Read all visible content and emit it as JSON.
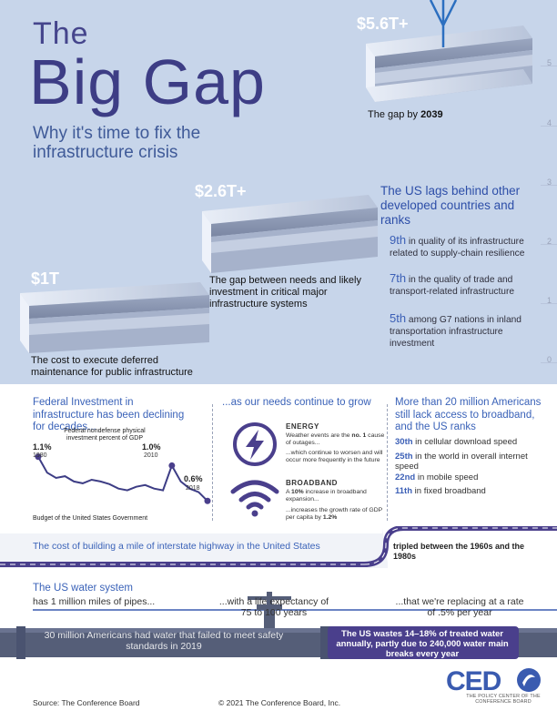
{
  "header": {
    "title_small": "The",
    "title_big": "Big Gap",
    "subtitle": "Why it's time to fix the infrastructure crisis"
  },
  "y_axis_ticks": [
    "5",
    "4",
    "3",
    "2",
    "1",
    "0"
  ],
  "beams": [
    {
      "amount": "$1T",
      "caption": "The cost to execute deferred maintenance for public infrastructure"
    },
    {
      "amount": "$2.6T+",
      "caption": "The gap between needs and likely investment in critical major infrastructure systems"
    },
    {
      "amount": "$5.6T+",
      "caption_prefix": "The gap by ",
      "caption_year": "2039"
    }
  ],
  "lag": {
    "title": "The US lags behind other developed countries and ranks",
    "ranks": [
      {
        "num": "9th",
        "text": " in quality of its infrastructure related to supply-chain resilience"
      },
      {
        "num": "7th",
        "text": " in the quality of trade and transport-related infrastructure"
      },
      {
        "num": "5th",
        "text": " among G7 nations in inland transportation infrastructure investment"
      }
    ]
  },
  "federal": {
    "heading": "Federal Investment in infrastructure has been declining for decades...",
    "chart_note": "Federal nondefense physical investment percent of GDP",
    "source": "Budget of the United States Government",
    "points": [
      {
        "label": "1.1%",
        "year": "1980"
      },
      {
        "label": "1.0%",
        "year": "2010"
      },
      {
        "label": "0.6%",
        "year": "2018"
      }
    ]
  },
  "chart_data": {
    "type": "line",
    "title": "Federal nondefense physical investment percent of GDP",
    "x": [
      1980,
      1982,
      1984,
      1986,
      1988,
      1990,
      1992,
      1994,
      1996,
      1998,
      2000,
      2002,
      2004,
      2006,
      2008,
      2010,
      2012,
      2014,
      2016,
      2018
    ],
    "series": [
      {
        "values": [
          1.1,
          0.92,
          0.86,
          0.88,
          0.82,
          0.8,
          0.84,
          0.82,
          0.79,
          0.74,
          0.72,
          0.76,
          0.78,
          0.74,
          0.72,
          1.0,
          0.82,
          0.74,
          0.7,
          0.6
        ]
      }
    ],
    "ylim": [
      0.5,
      1.2
    ],
    "grid": false
  },
  "needs": {
    "heading": "...as our needs continue to grow",
    "energy": {
      "title": "ENERGY",
      "text1_a": "Weather events are the",
      "text1_b": "no. 1",
      "text1_c": " cause of outages...",
      "text2": "...which continue to worsen and will occur more frequently in the future"
    },
    "broadband": {
      "title": "BROADBAND",
      "text1_a": "A ",
      "text1_b": "10%",
      "text1_c": " increase in broadband expansion...",
      "text2_a": "...increases the growth rate of GDP per capita by ",
      "text2_b": "1.2%"
    }
  },
  "broadband_gap": {
    "heading": "More than 20 million Americans still lack access to broadband, and the US ranks",
    "ranks": [
      {
        "num": "30th",
        "text": " in cellular download speed"
      },
      {
        "num": "25th",
        "text": " in the world in overall internet speed"
      },
      {
        "num": "22nd",
        "text": " in mobile speed"
      },
      {
        "num": "11th",
        "text": " in fixed broadband"
      }
    ]
  },
  "road": {
    "text": "The cost of building a mile of interstate highway in the United States",
    "tripled": "tripled between the 1960s and the 1980s"
  },
  "water": {
    "heading": "The US water system",
    "pipes": "has 1 million miles of pipes...",
    "life": "...with a life expectancy of 75 to 100 years",
    "replacing": "...that we're replacing at a rate of .5% per year",
    "unsafe": "30 million Americans had water that failed to meet safety standards in 2019",
    "wastes": "The US wastes 14–18% of treated water annually, partly due to 240,000 water main breaks every year"
  },
  "footer": {
    "source": "Source: The Conference Board",
    "copyright": "© 2021 The Conference Board, Inc.",
    "logo": "CED",
    "logo_sub": "THE POLICY CENTER OF THE CONFERENCE BOARD"
  },
  "colors": {
    "sky": "#c7d5ea",
    "title": "#3d3d85",
    "accent_blue": "#3a62b8",
    "purple": "#4a3f8c",
    "road": "#555e78"
  }
}
